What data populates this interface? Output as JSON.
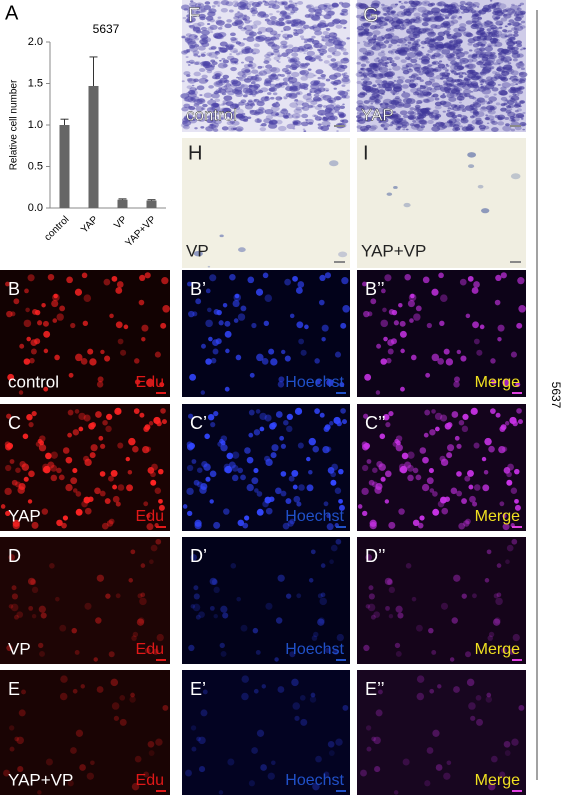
{
  "chart_data": {
    "type": "bar",
    "panel_label": "A",
    "title": "5637",
    "y_label": "Relative cell number",
    "categories": [
      "control",
      "YAP",
      "VP",
      "YAP+VP"
    ],
    "values": [
      1.0,
      1.47,
      0.1,
      0.09
    ],
    "errors": [
      0.07,
      0.35,
      0.01,
      0.01
    ],
    "color": "#666666",
    "ylim": [
      0,
      2
    ],
    "yticks": [
      {
        "value": 0,
        "label": "0.0"
      },
      0.5,
      {
        "value": 1,
        "label": "1.0"
      },
      1.5,
      {
        "value": 2,
        "label": "2.0"
      }
    ]
  },
  "top_panels": [
    {
      "letter": "F",
      "label": "control"
    },
    {
      "letter": "G",
      "label": "YAP"
    },
    {
      "letter": "H",
      "label": "VP"
    },
    {
      "letter": "I",
      "label": "YAP+VP"
    }
  ],
  "rows": [
    {
      "letters": [
        "B",
        "B’",
        "B’’"
      ],
      "condition": "control",
      "stains": [
        "Edu",
        "Hoechst",
        "Merge"
      ]
    },
    {
      "letters": [
        "C",
        "C’",
        "C’’"
      ],
      "condition": "YAP",
      "stains": [
        "Edu",
        "Hoechst",
        "Merge"
      ]
    },
    {
      "letters": [
        "D",
        "D’",
        "D’’"
      ],
      "condition": "VP",
      "stains": [
        "Edu",
        "Hoechst",
        "Merge"
      ]
    },
    {
      "letters": [
        "E",
        "E’",
        "E’’"
      ],
      "condition": "YAP+VP",
      "stains": [
        "Edu",
        "Hoechst",
        "Merge"
      ]
    }
  ],
  "side_label": "5637"
}
